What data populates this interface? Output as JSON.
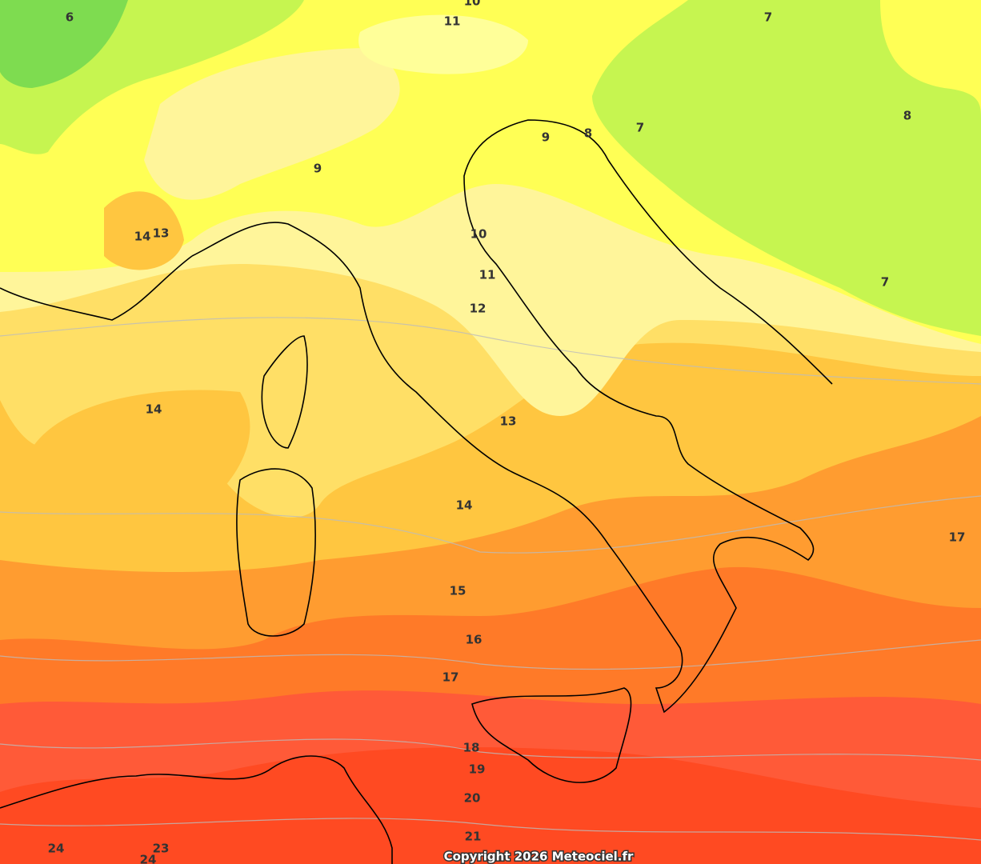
{
  "labels": [
    "10",
    "6",
    "11",
    "7",
    "9",
    "8",
    "7",
    "8",
    "9",
    "14",
    "13",
    "10",
    "11",
    "7",
    "12",
    "14",
    "13",
    "14",
    "17",
    "15",
    "16",
    "17",
    "18",
    "19",
    "20",
    "21",
    "24",
    "23",
    "24"
  ],
  "copyright": "Copyright 2026 Meteociel.fr"
}
